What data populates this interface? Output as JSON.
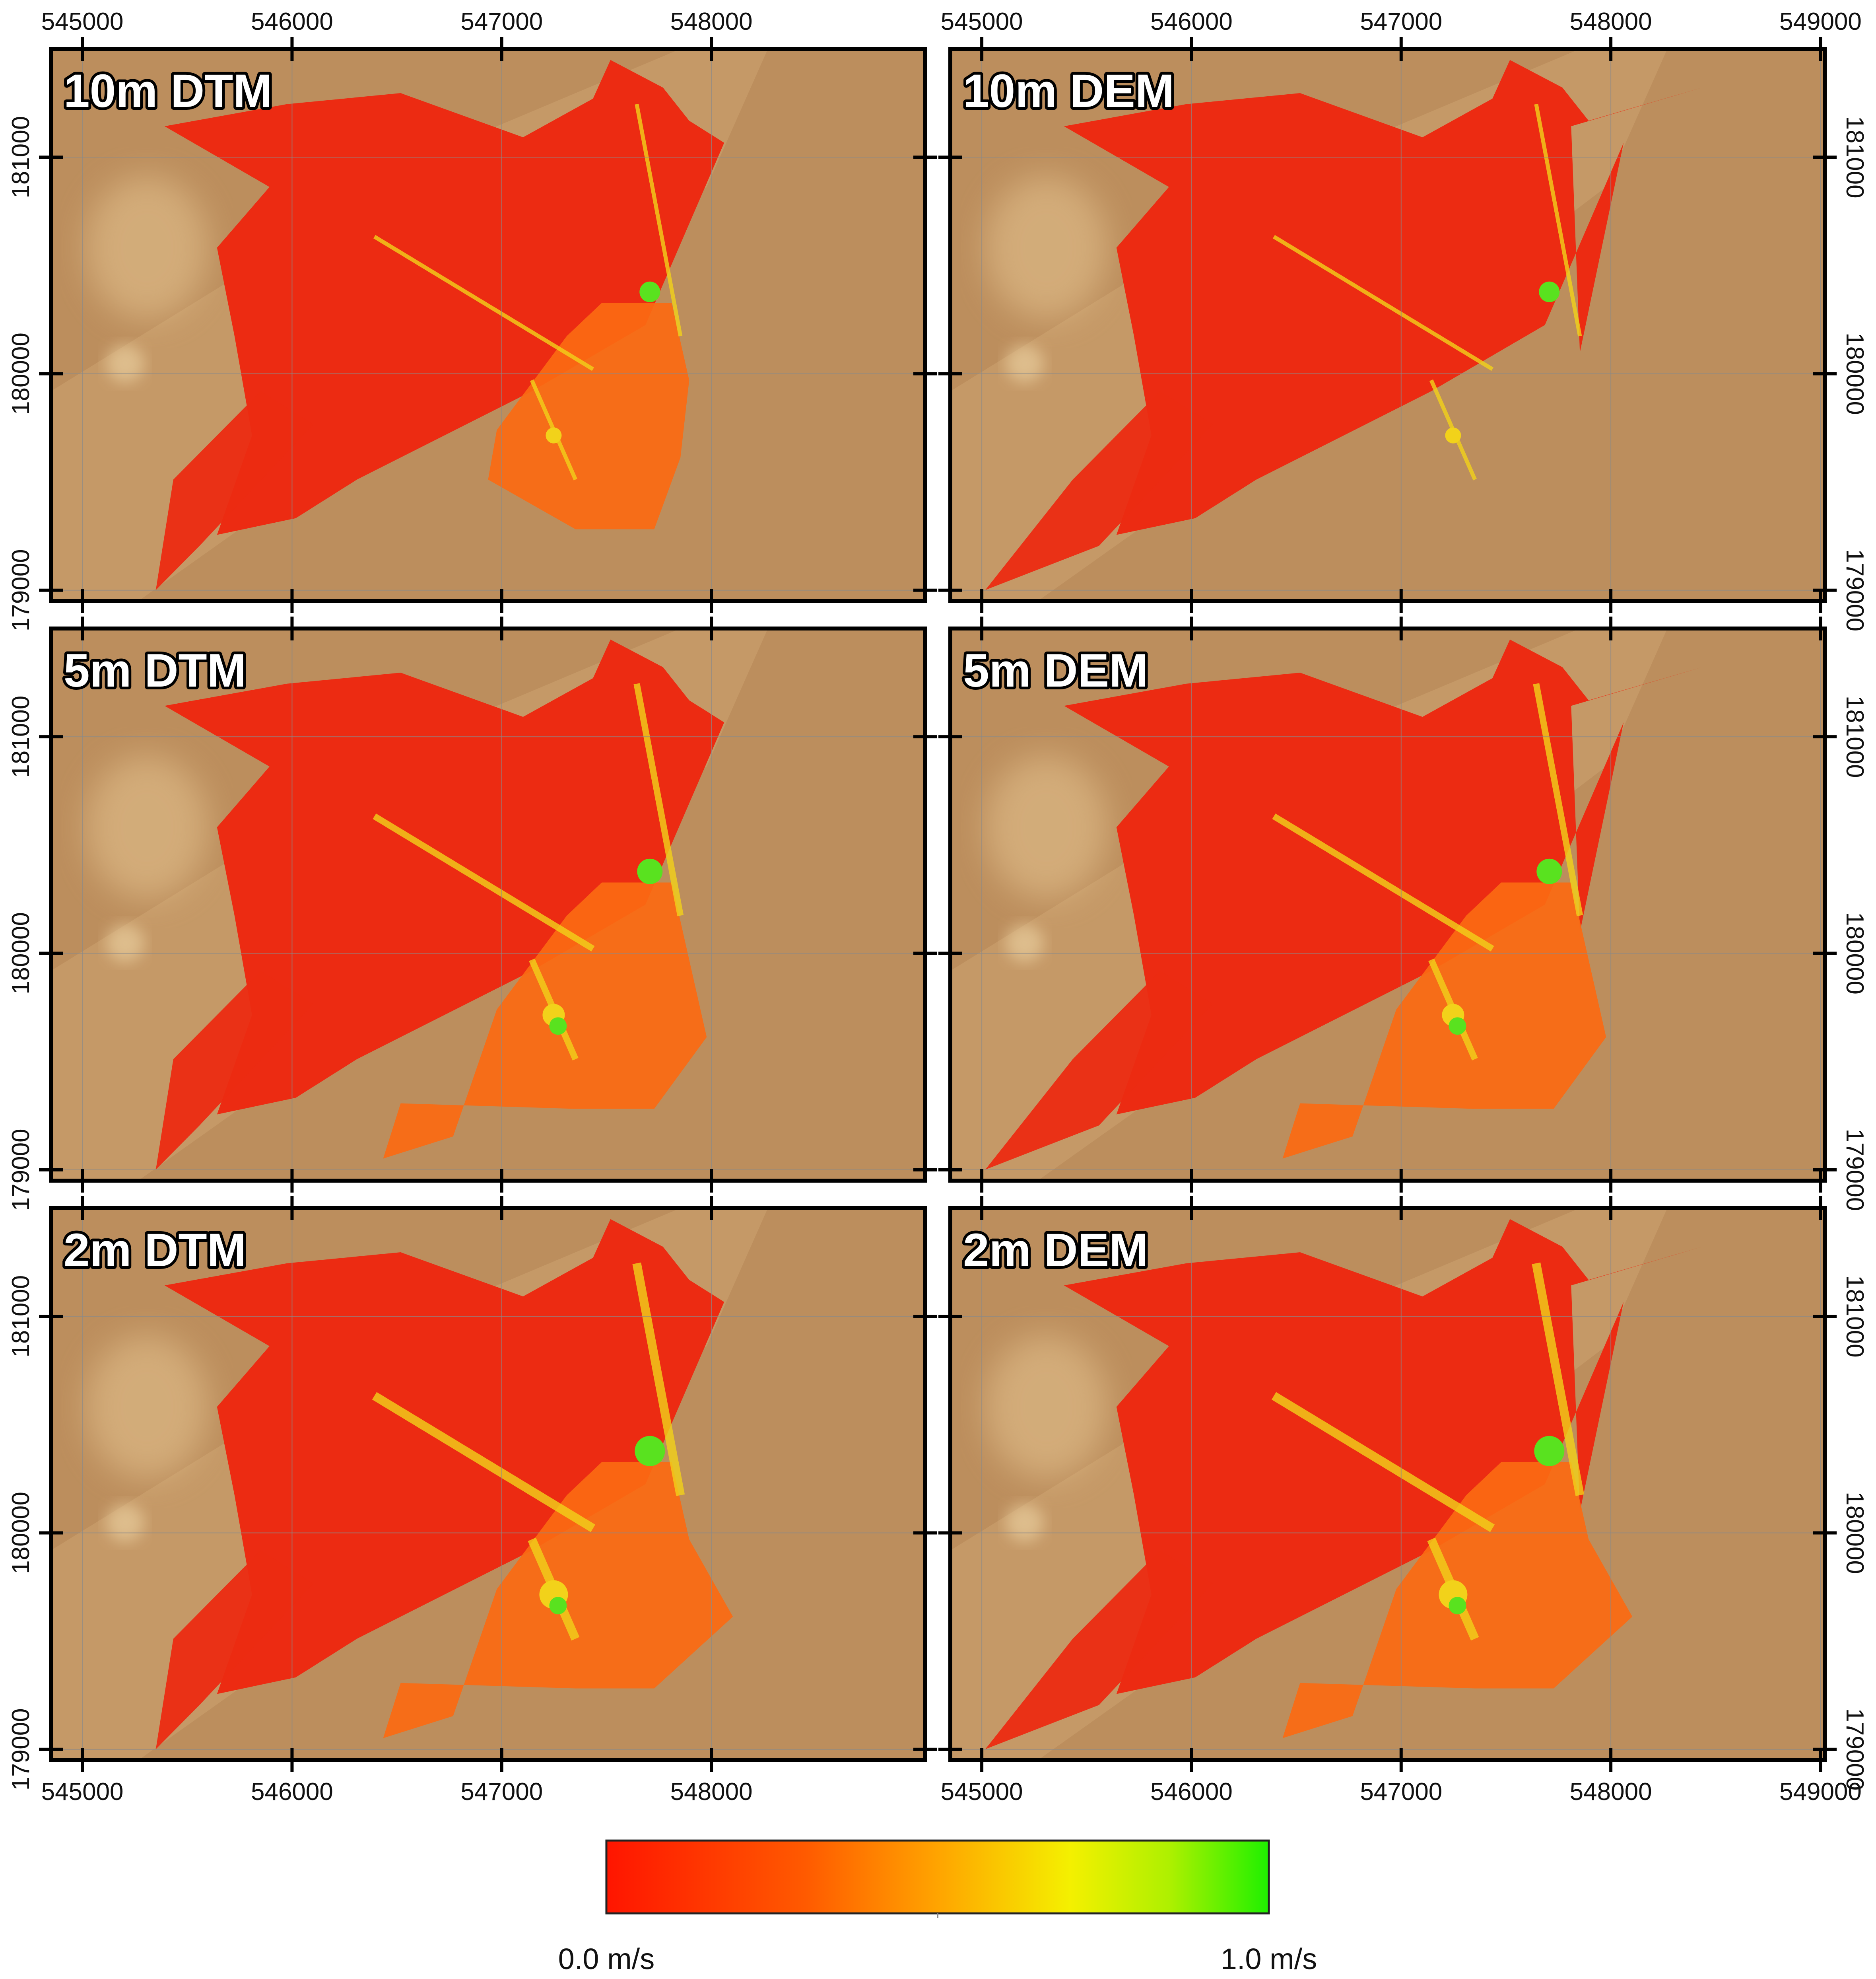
{
  "panels": [
    {
      "id": "dtm10",
      "title": "10m DTM",
      "row": 0,
      "col": 0,
      "spread": "medium",
      "dem": false
    },
    {
      "id": "dem10",
      "title": "10m DEM",
      "row": 0,
      "col": 1,
      "spread": "medium",
      "dem": true
    },
    {
      "id": "dtm5",
      "title": "5m DTM",
      "row": 1,
      "col": 0,
      "spread": "wide",
      "dem": false
    },
    {
      "id": "dem5",
      "title": "5m DEM",
      "row": 1,
      "col": 1,
      "spread": "wide",
      "dem": true
    },
    {
      "id": "dtm2",
      "title": "2m DTM",
      "row": 2,
      "col": 0,
      "spread": "widest",
      "dem": false
    },
    {
      "id": "dem2",
      "title": "2m DEM",
      "row": 2,
      "col": 1,
      "spread": "widest",
      "dem": true
    }
  ],
  "axes": {
    "left_x_ticks": [
      "545000",
      "546000",
      "547000",
      "548000"
    ],
    "right_x_ticks": [
      "545000",
      "546000",
      "547000",
      "548000",
      "549000"
    ],
    "y_ticks": [
      "181000",
      "180000",
      "179000"
    ],
    "x_range": [
      544850,
      549020
    ],
    "y_range": [
      178950,
      181500
    ]
  },
  "legend": {
    "min_label": "0.0 m/s",
    "max_label": "1.0 m/s",
    "min_value": 0.0,
    "max_value": 1.0,
    "colors": [
      "#ff1500",
      "#ff5a00",
      "#ffa400",
      "#f4f000",
      "#aef000",
      "#1ff000"
    ]
  },
  "colors": {
    "terrain": "#bc8e5d",
    "terrain_light": "#d8b07c",
    "flood_base": "#ec2b12",
    "flood_mid": "#fb6a12",
    "flood_high": "#f2d21a",
    "flood_peak": "#59e21f"
  }
}
